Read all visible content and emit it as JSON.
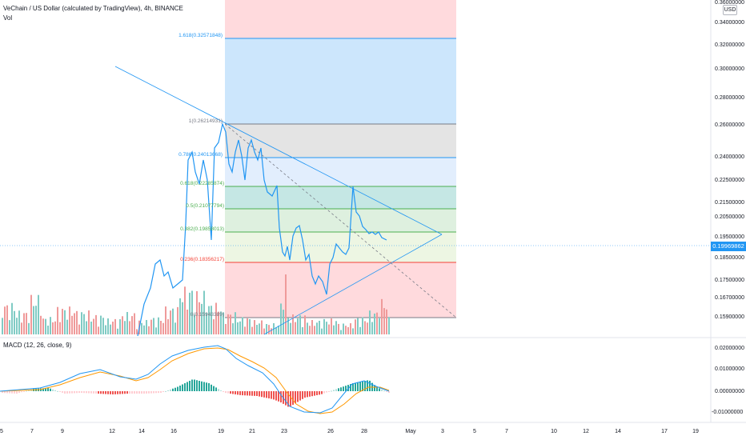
{
  "header": {
    "title": "VeChain / US Dollar (calculated by TradingView), 4h, BINANCE",
    "vol_label": "Vol",
    "currency_button": "USD"
  },
  "macd": {
    "label": "MACD (12, 26, close, 9)"
  },
  "price_axis": {
    "ticks": [
      "0.36000000",
      "0.34000000",
      "0.32000000",
      "0.30000000",
      "0.28000000",
      "0.26000000",
      "0.24000000",
      "0.22500000",
      "0.21500000",
      "0.20500000",
      "0.19500000",
      "0.18500000",
      "0.17500000",
      "0.16700000",
      "0.15900000"
    ],
    "current_price": "0.19969862"
  },
  "macd_axis": {
    "ticks": [
      "0.02000000",
      "0.01000000",
      "0.00000000",
      "-0.01000000"
    ]
  },
  "time_axis": {
    "ticks": [
      "5",
      "7",
      "9",
      "12",
      "14",
      "16",
      "19",
      "21",
      "23",
      "26",
      "28",
      "May",
      "3",
      "5",
      "7",
      "10",
      "12",
      "14",
      "17",
      "19"
    ]
  },
  "fib_levels": [
    {
      "text": "1.618(0.32571848)",
      "color": "#2196f3"
    },
    {
      "text": "1(0.26214931)",
      "color": "#787b86"
    },
    {
      "text": "0.786(0.24013668)",
      "color": "#2196f3"
    },
    {
      "text": "0.618(0.22285874)",
      "color": "#4caf50"
    },
    {
      "text": "0.5(0.21077794)",
      "color": "#4caf50"
    },
    {
      "text": "0.382(0.19858013)",
      "color": "#4caf50"
    },
    {
      "text": "0.236(0.18356217)",
      "color": "#f44336"
    },
    {
      "text": "0(0.15943389)",
      "color": "#787b86"
    }
  ],
  "colors": {
    "price_line": "#2196f3",
    "macd_line": "#2196f3",
    "signal_line": "#ff9800",
    "hist_up_strong": "#26a69a",
    "hist_up_weak": "#b2dfdb",
    "hist_down_strong": "#ef5350",
    "hist_down_weak": "#ffcdd2",
    "vol_up": "#80cbc4",
    "vol_down": "#ef9a9a"
  }
}
